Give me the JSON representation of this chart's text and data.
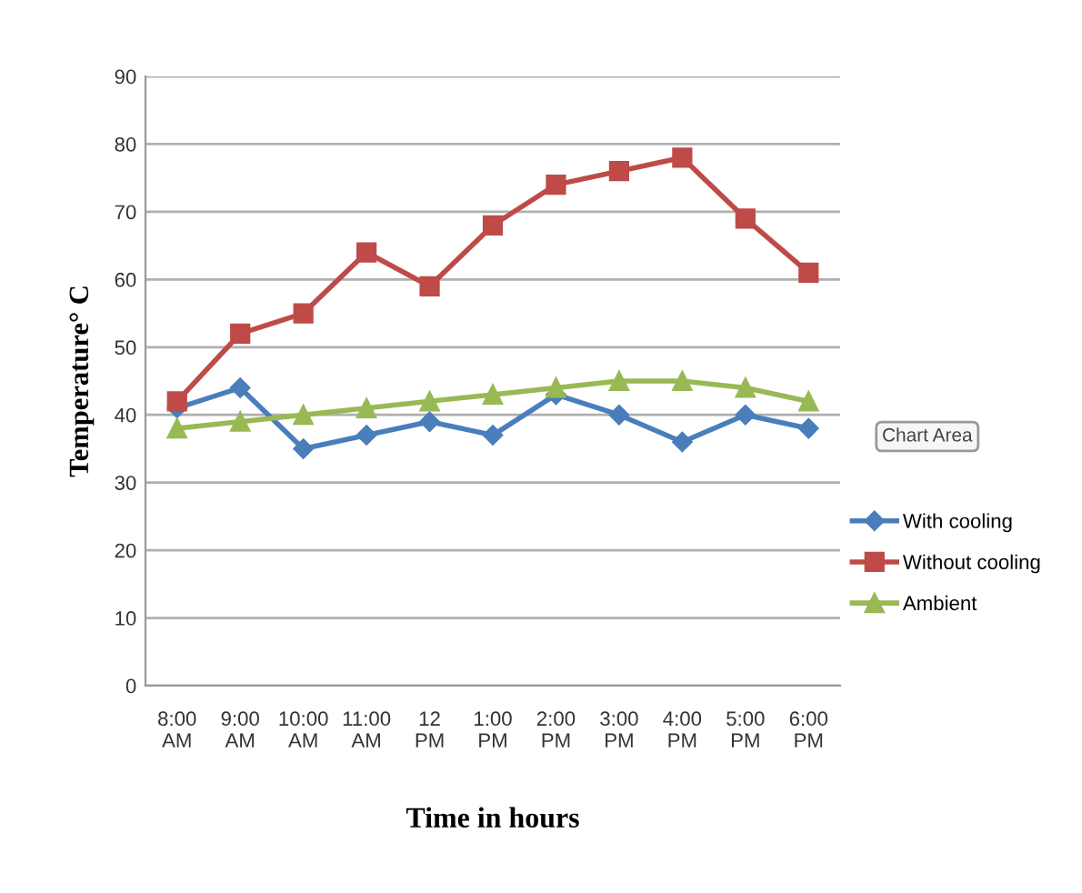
{
  "chart_data": {
    "type": "line",
    "xlabel": "Time in hours",
    "ylabel": "Temperature° C",
    "categories": [
      "8:00\nAM",
      "9:00\nAM",
      "10:00\nAM",
      "11:00\nAM",
      "12\nPM",
      "1:00\nPM",
      "2:00\nPM",
      "3:00\nPM",
      "4:00\nPM",
      "5:00\nPM",
      "6:00\nPM"
    ],
    "series": [
      {
        "name": "With cooling",
        "color": "#4a7ebb",
        "marker": "diamond",
        "values": [
          41,
          44,
          35,
          37,
          39,
          37,
          43,
          40,
          36,
          40,
          38
        ]
      },
      {
        "name": "Without cooling",
        "color": "#be4b48",
        "marker": "square",
        "values": [
          42,
          52,
          55,
          64,
          59,
          68,
          74,
          76,
          78,
          69,
          61
        ]
      },
      {
        "name": "Ambient",
        "color": "#98b954",
        "marker": "triangle",
        "values": [
          38,
          39,
          40,
          41,
          42,
          43,
          44,
          45,
          45,
          44,
          42
        ]
      }
    ],
    "ylim": [
      0,
      90
    ],
    "yticks": [
      0,
      10,
      20,
      30,
      40,
      50,
      60,
      70,
      80,
      90
    ],
    "grid": "y",
    "legend": "right",
    "line_style": "solid",
    "annotations": [
      "Chart Area"
    ]
  }
}
